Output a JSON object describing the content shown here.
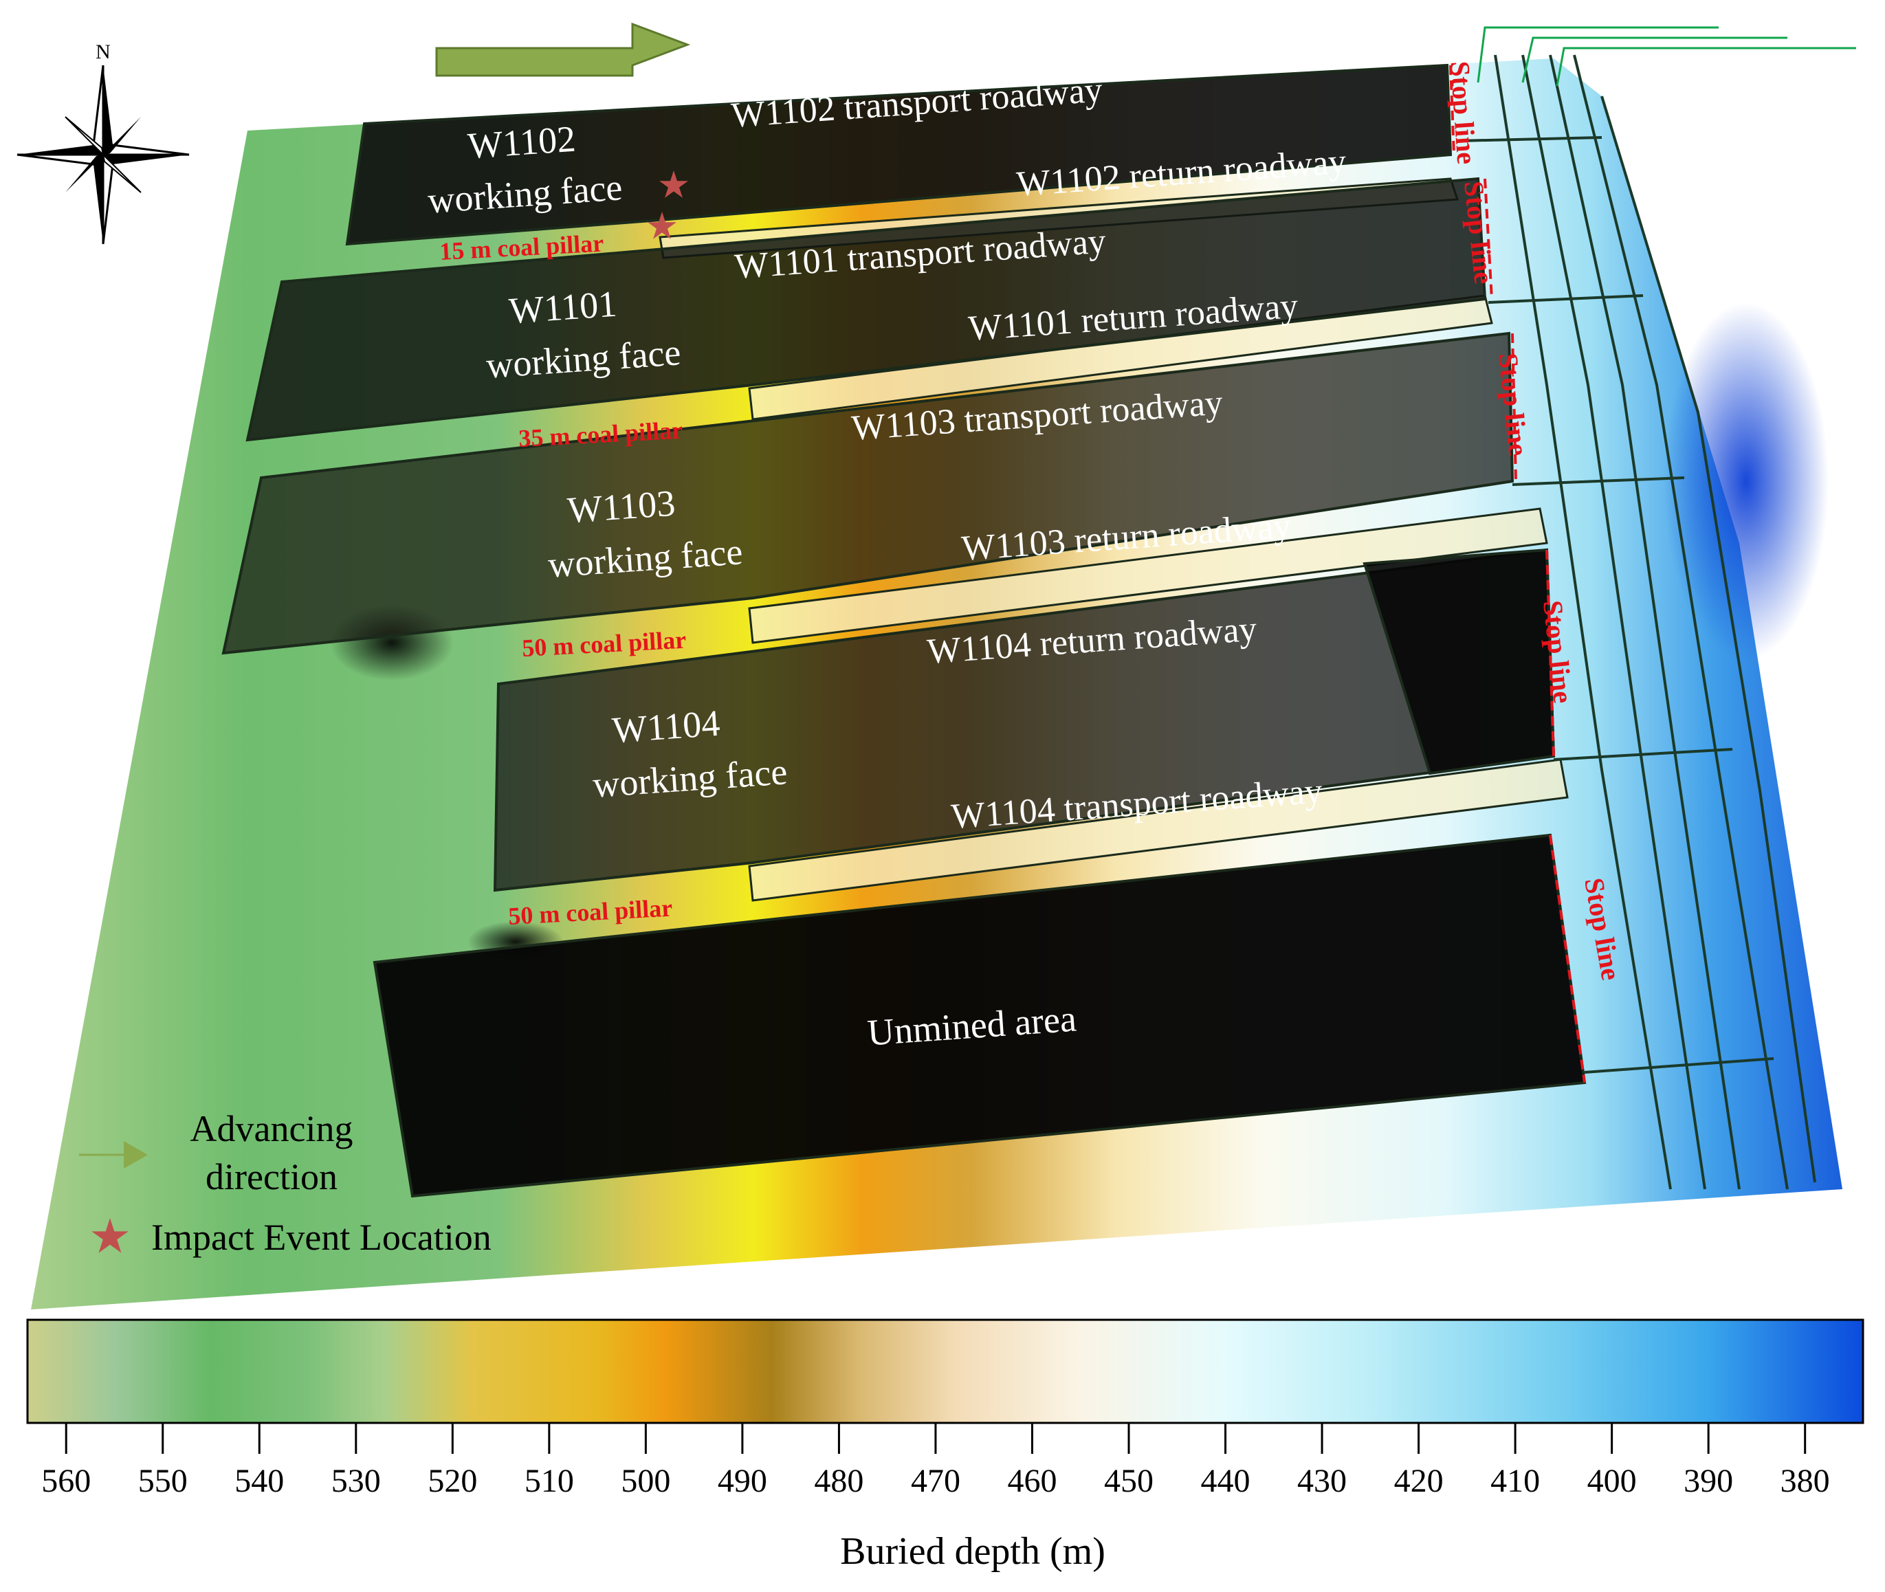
{
  "compass": {
    "north_label": "N"
  },
  "panels": [
    {
      "name": "W1102",
      "face_label": "working face"
    },
    {
      "name": "W1101",
      "face_label": "working face"
    },
    {
      "name": "W1103",
      "face_label": "working face"
    },
    {
      "name": "W1104",
      "face_label": "working face"
    },
    {
      "name": "Unmined area",
      "face_label": ""
    }
  ],
  "roadways": [
    "W1102 transport roadway",
    "W1102 return roadway",
    "W1101 transport roadway",
    "W1101 return roadway",
    "W1103 transport roadway",
    "W1103 return roadway",
    "W1104 return roadway",
    "W1104 transport roadway"
  ],
  "coal_pillars": [
    "15 m coal pillar",
    "35 m coal pillar",
    "50 m coal pillar",
    "50 m coal pillar"
  ],
  "stop_line_label": "Stop line",
  "legend": {
    "advancing_label_line1": "Advancing",
    "advancing_label_line2": "direction",
    "impact_label": "Impact Event Location"
  },
  "colorbar": {
    "title": "Buried depth (m)",
    "ticks": [
      560,
      550,
      540,
      530,
      520,
      510,
      500,
      490,
      480,
      470,
      460,
      450,
      440,
      430,
      420,
      410,
      400,
      390,
      380
    ],
    "range": [
      564,
      374
    ],
    "stops": [
      {
        "depth": 564,
        "color": "#cdcf8a"
      },
      {
        "depth": 555,
        "color": "#9cc89a"
      },
      {
        "depth": 545,
        "color": "#66b966"
      },
      {
        "depth": 535,
        "color": "#7cc17a"
      },
      {
        "depth": 527,
        "color": "#a9cf8c"
      },
      {
        "depth": 518,
        "color": "#e3c447"
      },
      {
        "depth": 505,
        "color": "#e8b820"
      },
      {
        "depth": 498,
        "color": "#f09a10"
      },
      {
        "depth": 487,
        "color": "#a8801a"
      },
      {
        "depth": 478,
        "color": "#d9b870"
      },
      {
        "depth": 468,
        "color": "#f3dcb6"
      },
      {
        "depth": 455,
        "color": "#faf4e6"
      },
      {
        "depth": 440,
        "color": "#e5fbfd"
      },
      {
        "depth": 425,
        "color": "#bdeef8"
      },
      {
        "depth": 405,
        "color": "#72cdf0"
      },
      {
        "depth": 390,
        "color": "#39a6ec"
      },
      {
        "depth": 374,
        "color": "#0a4bdc"
      }
    ]
  },
  "colors": {
    "impact_star": "#c0504d",
    "stop_line_red": "#e4141b",
    "advance_arrow": "#8aaa4c",
    "panel_dark": "#0a0a0a"
  }
}
